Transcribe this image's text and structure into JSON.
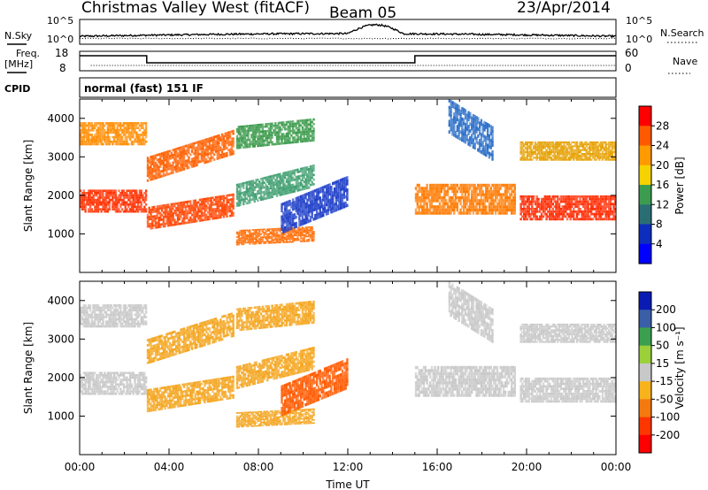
{
  "header": {
    "site": "Christmas Valley West (fitACF)",
    "beam": "Beam 05",
    "date": "23/Apr/2014"
  },
  "status_panels": {
    "nsky_label": "N.Sky",
    "nsky_ticks": [
      "10^5",
      "10^0"
    ],
    "nsearch_label": "N.Search",
    "nsearch_ticks": [
      "10^5",
      "10^0"
    ],
    "freq_label_1": "Freq.",
    "freq_label_2": "[MHz]",
    "freq_ticks": [
      "18",
      "8"
    ],
    "nave_label": "Nave",
    "nave_ticks": [
      "60",
      "0"
    ],
    "cpid_label": "CPID",
    "cpid_value": "normal (fast) 151 IF"
  },
  "chart_data": [
    {
      "type": "heatmap",
      "name": "power",
      "ylabel": "Slant Range [km]",
      "ylim": [
        0,
        4500
      ],
      "yticks": [
        "1000",
        "2000",
        "3000",
        "4000"
      ],
      "ytick_values": [
        1000,
        2000,
        3000,
        4000
      ],
      "xlim_hours": [
        0,
        24
      ],
      "colorbar": {
        "label": "Power [dB]",
        "tick_labels": [
          "28",
          "24",
          "20",
          "16",
          "12",
          "8",
          "4"
        ],
        "colors": [
          "#ff0000",
          "#ff5a00",
          "#ff9a00",
          "#f5d200",
          "#3b9c50",
          "#2a6e74",
          "#0d2ebd",
          "#0000ff"
        ]
      },
      "echo_bands": [
        {
          "t": [
            0.0,
            3.0
          ],
          "r": [
            1550,
            2150
          ],
          "color": "#ff3000"
        },
        {
          "t": [
            3.0,
            6.9
          ],
          "r": [
            1100,
            1700
          ],
          "color": "#ff4400",
          "rise": 350
        },
        {
          "t": [
            3.0,
            6.9
          ],
          "r": [
            2350,
            3000
          ],
          "color": "#ff6000",
          "rise": 700
        },
        {
          "t": [
            0.0,
            3.0
          ],
          "r": [
            3300,
            3900
          ],
          "color": "#ff8c00"
        },
        {
          "t": [
            7.0,
            10.5
          ],
          "r": [
            700,
            1100
          ],
          "color": "#ff6a00",
          "rise": 100
        },
        {
          "t": [
            7.0,
            10.5
          ],
          "r": [
            1700,
            2300
          ],
          "color": "#3f9e70",
          "rise": 500
        },
        {
          "t": [
            7.0,
            10.5
          ],
          "r": [
            3200,
            3800
          ],
          "color": "#3a9a4a",
          "rise": 200
        },
        {
          "t": [
            9.0,
            12.0
          ],
          "r": [
            1000,
            1800
          ],
          "color": "#2040c8",
          "rise": 700
        },
        {
          "t": [
            15.0,
            19.5
          ],
          "r": [
            1500,
            2300
          ],
          "color": "#ff7a00"
        },
        {
          "t": [
            19.7,
            24.0
          ],
          "r": [
            1350,
            2000
          ],
          "color": "#ff2a00"
        },
        {
          "t": [
            19.7,
            24.0
          ],
          "r": [
            2900,
            3400
          ],
          "color": "#e6a000"
        },
        {
          "t": [
            16.5,
            18.5
          ],
          "r": [
            3600,
            4500
          ],
          "color": "#2a6ec8",
          "rise": -700
        }
      ]
    },
    {
      "type": "heatmap",
      "name": "velocity",
      "ylabel": "Slant Range [km]",
      "ylim": [
        0,
        4500
      ],
      "yticks": [
        "1000",
        "2000",
        "3000",
        "4000"
      ],
      "ytick_values": [
        1000,
        2000,
        3000,
        4000
      ],
      "xlim_hours": [
        0,
        24
      ],
      "xlabel": "Time UT",
      "xticks": [
        "00:00",
        "04:00",
        "08:00",
        "12:00",
        "16:00",
        "20:00",
        "00:00"
      ],
      "xtick_hours": [
        0,
        4,
        8,
        12,
        16,
        20,
        24
      ],
      "colorbar": {
        "label": "Velocity [m s⁻¹]",
        "tick_labels": [
          "200",
          "100",
          "50",
          "15",
          "-15",
          "-50",
          "-100",
          "-200"
        ],
        "colors": [
          "#0a1bb3",
          "#3a5ea8",
          "#3aa050",
          "#9bd03a",
          "#c8c8c8",
          "#f7b21c",
          "#f47a10",
          "#ff3600",
          "#ff0000"
        ]
      },
      "echo_bands": [
        {
          "t": [
            0.0,
            3.0
          ],
          "r": [
            1550,
            2150
          ],
          "color": "#c8c8c8"
        },
        {
          "t": [
            3.0,
            6.9
          ],
          "r": [
            1100,
            1700
          ],
          "color": "#f4a41c",
          "rise": 350
        },
        {
          "t": [
            3.0,
            6.9
          ],
          "r": [
            2350,
            3000
          ],
          "color": "#f4a41c",
          "rise": 700
        },
        {
          "t": [
            0.0,
            3.0
          ],
          "r": [
            3300,
            3900
          ],
          "color": "#c8c8c8"
        },
        {
          "t": [
            7.0,
            10.5
          ],
          "r": [
            700,
            1100
          ],
          "color": "#f4a41c",
          "rise": 100
        },
        {
          "t": [
            7.0,
            10.5
          ],
          "r": [
            1700,
            2300
          ],
          "color": "#f4a41c",
          "rise": 500
        },
        {
          "t": [
            7.0,
            10.5
          ],
          "r": [
            3200,
            3800
          ],
          "color": "#f4a41c",
          "rise": 200
        },
        {
          "t": [
            9.0,
            12.0
          ],
          "r": [
            1000,
            1800
          ],
          "color": "#ff5a00",
          "rise": 700
        },
        {
          "t": [
            15.0,
            19.5
          ],
          "r": [
            1500,
            2300
          ],
          "color": "#c8c8c8"
        },
        {
          "t": [
            19.7,
            24.0
          ],
          "r": [
            1350,
            2000
          ],
          "color": "#c8c8c8"
        },
        {
          "t": [
            19.7,
            24.0
          ],
          "r": [
            2900,
            3400
          ],
          "color": "#c8c8c8"
        },
        {
          "t": [
            16.5,
            18.5
          ],
          "r": [
            3600,
            4500
          ],
          "color": "#c8c8c8",
          "rise": -700
        }
      ]
    }
  ]
}
